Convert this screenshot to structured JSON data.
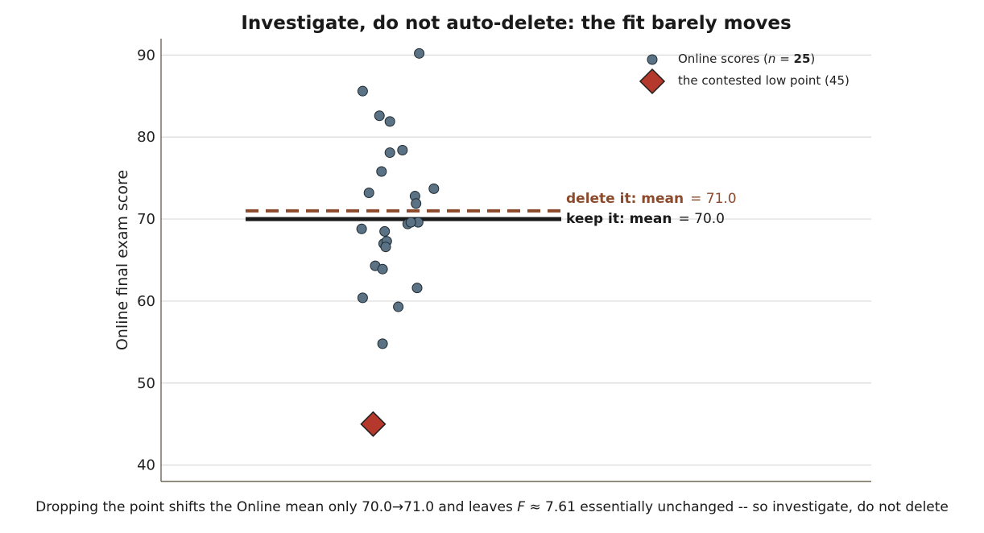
{
  "chart_data": {
    "type": "scatter",
    "title": "Investigate, do not auto-delete: the fit barely moves",
    "ylabel": "Online final exam score",
    "xlabel": "",
    "ylim": [
      38,
      92
    ],
    "yticks": [
      40,
      50,
      60,
      70,
      80,
      90
    ],
    "grid": true,
    "legend_position": "top-right",
    "series": [
      {
        "name": "Online scores (n = 25)",
        "legend_label": {
          "prefix": "Online scores (",
          "var": "n",
          "op": " = ",
          "num": "25",
          "suffix": ")"
        },
        "marker": "circle",
        "color": "#5a7284",
        "jitter": [
          0.08,
          0.24,
          0.34,
          0.26,
          0.46,
          0.34,
          0.62,
          0.14,
          0.58,
          0.59,
          0.76,
          0.07,
          0.29,
          0.61,
          0.51,
          0.28,
          0.31,
          0.3,
          0.2,
          0.27,
          0.6,
          0.08,
          0.42,
          0.27,
          0.54
        ],
        "values": [
          85.6,
          82.6,
          78.1,
          75.8,
          78.4,
          81.9,
          90.2,
          73.2,
          72.8,
          71.9,
          73.7,
          68.8,
          68.5,
          69.6,
          69.4,
          67.0,
          67.3,
          66.6,
          64.3,
          63.9,
          61.6,
          60.4,
          59.3,
          54.8,
          69.6
        ]
      },
      {
        "name": "the contested low point (45)",
        "marker": "diamond",
        "color": "#b5382c",
        "jitter": [
          0.18
        ],
        "values": [
          45
        ]
      }
    ],
    "reference_lines": [
      {
        "label": "delete it: mean",
        "value_text": "= 71.0",
        "value": 71.0,
        "style": "dashed",
        "color": "#8b4a2b"
      },
      {
        "label": "keep it: mean",
        "value_text": "= 70.0",
        "value": 70.0,
        "style": "solid",
        "color": "#1a1a1a"
      }
    ]
  },
  "caption": {
    "part1": "Dropping the point shifts the Online mean only ",
    "from": "70.0",
    "arrow": "→",
    "to": "71.0",
    "part2": " and leaves ",
    "stat_var": "F",
    "approx": " ≈ ",
    "stat_val": "7.61",
    "part3": " essentially unchanged -- so investigate, do not delete"
  }
}
